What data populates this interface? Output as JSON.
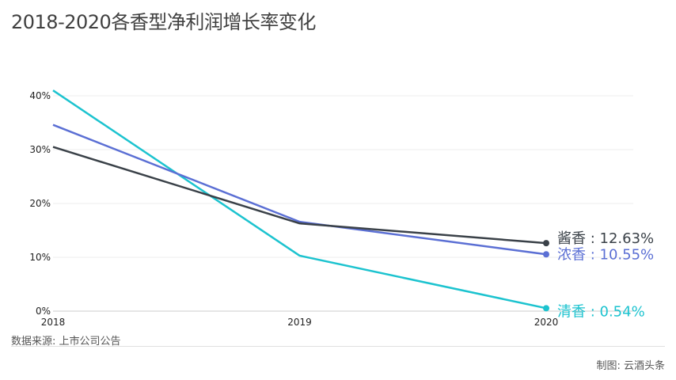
{
  "title": "2018-2020各香型净利润增长率变化",
  "source": "数据来源: 上市公司公告",
  "credit": "制图:  云酒头条",
  "chart_data": {
    "type": "line",
    "x": [
      "2018",
      "2019",
      "2020"
    ],
    "yticks": [
      "0%",
      "10%",
      "20%",
      "30%",
      "40%"
    ],
    "ylim": [
      0,
      40
    ],
    "grid": true,
    "series": [
      {
        "name": "清香",
        "values": [
          41.0,
          10.3,
          0.54
        ],
        "color": "#1cc3cf",
        "end_label": "清香 : 0.54%"
      },
      {
        "name": "浓香",
        "values": [
          34.6,
          16.6,
          10.55
        ],
        "color": "#5b6fd4",
        "end_label": "浓香 : 10.55%"
      },
      {
        "name": "酱香",
        "values": [
          30.5,
          16.3,
          12.63
        ],
        "color": "#3a4148",
        "end_label": "酱香 : 12.63%"
      }
    ]
  }
}
